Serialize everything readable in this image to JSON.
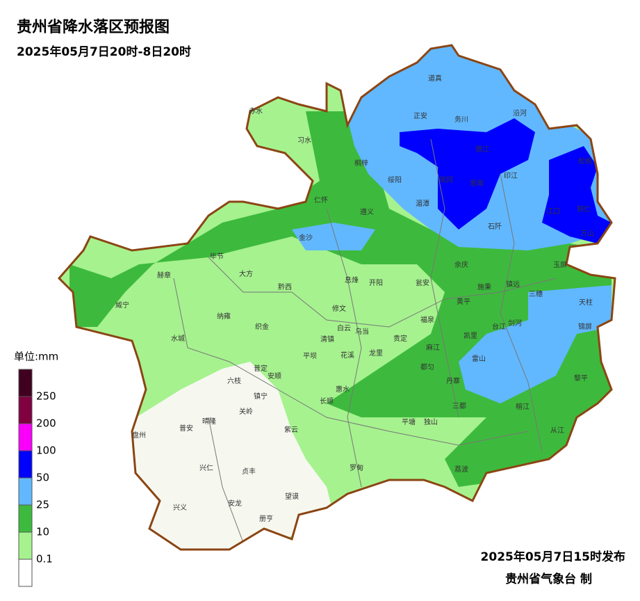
{
  "header": {
    "title": "贵州省降水落区预报图",
    "subtitle": "2025年05月7日20时-8日20时"
  },
  "legend": {
    "unit": "单位:mm",
    "colors": [
      "#ffffff",
      "#a6f28f",
      "#3dba3d",
      "#61b8ff",
      "#0000fe",
      "#fa00fa",
      "#800040",
      "#400020"
    ],
    "labels": [
      "0.1",
      "10",
      "25",
      "50",
      "100",
      "200",
      "250"
    ]
  },
  "cities": [
    "赤水",
    "习水",
    "道真",
    "正安",
    "务川",
    "沿河",
    "桐梓",
    "绥阳",
    "德江",
    "凤冈",
    "思南",
    "印江",
    "松桃",
    "湄潭",
    "仁怀",
    "遵义",
    "石阡",
    "江口",
    "铜仁",
    "万山",
    "金沙",
    "毕节",
    "余庆",
    "玉屏",
    "大方",
    "赫章",
    "息烽",
    "开阳",
    "瓮安",
    "施秉",
    "镇远",
    "黔西",
    "三穗",
    "天柱",
    "威宁",
    "黄平",
    "修文",
    "纳雍",
    "福泉",
    "台江",
    "剑河",
    "锦屏",
    "织金",
    "白云",
    "乌当",
    "清镇",
    "贵定",
    "凯里",
    "麻江",
    "水城",
    "平坝",
    "花溪",
    "龙里",
    "雷山",
    "都匀",
    "普定",
    "安顺",
    "六枝",
    "惠水",
    "丹寨",
    "黎平",
    "镇宁",
    "长顺",
    "三都",
    "关岭",
    "榕江",
    "平塘",
    "独山",
    "盘州",
    "普安",
    "晴隆",
    "紫云",
    "从江",
    "兴仁",
    "贞丰",
    "罗甸",
    "荔波",
    "望谟",
    "兴义",
    "安龙",
    "册亨"
  ],
  "footer": {
    "issued": "2025年05月7日15时发布",
    "issuer": "贵州省气象台 制"
  }
}
